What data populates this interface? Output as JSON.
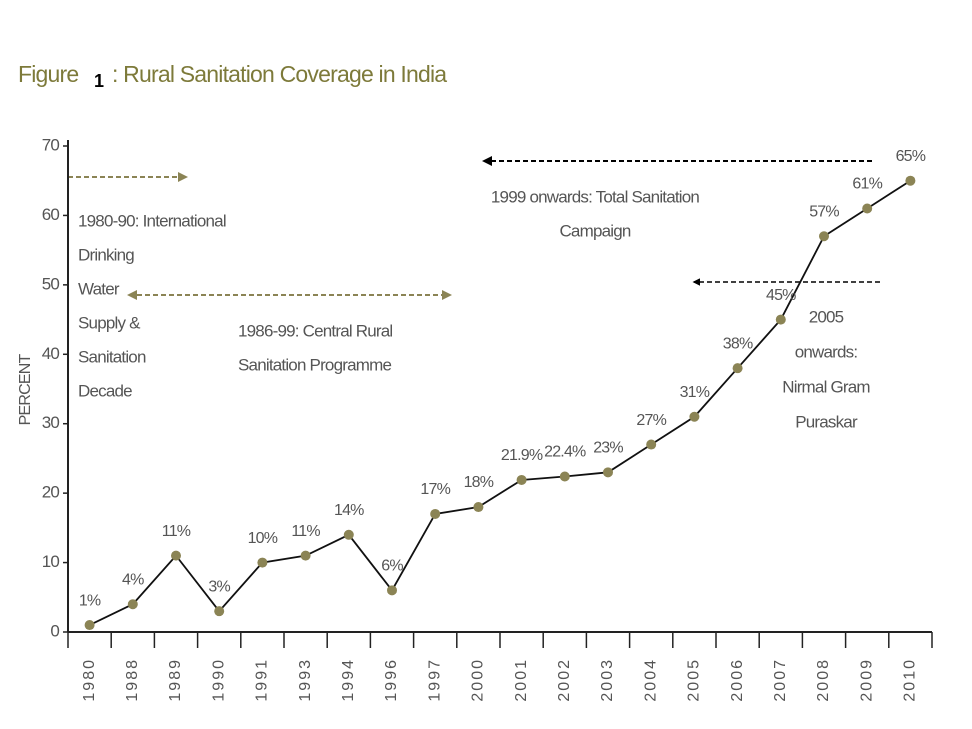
{
  "chart_data": {
    "type": "line",
    "title_prefix": "Figure",
    "figure_number": "1",
    "title": ": Rural Sanitation Coverage in India",
    "y_label": "PERCENT",
    "categories": [
      "1980",
      "1988",
      "1989",
      "1990",
      "1991",
      "1993",
      "1994",
      "1996",
      "1997",
      "2000",
      "2001",
      "2002",
      "2003",
      "2004",
      "2005",
      "2006",
      "2007",
      "2008",
      "2009",
      "2010"
    ],
    "series": [
      {
        "name": "Rural sanitation coverage",
        "color": "#111111",
        "marker_color": "#8b8455",
        "values": [
          1,
          4,
          11,
          3,
          10,
          11,
          14,
          6,
          17,
          18,
          21.9,
          22.4,
          23,
          27,
          31,
          38,
          45,
          57,
          61,
          65
        ],
        "value_labels": [
          "1%",
          "4%",
          "11%",
          "3%",
          "10%",
          "11%",
          "14%",
          "6%",
          "17%",
          "18%",
          "21.9%",
          "22.4%",
          "23%",
          "27%",
          "31%",
          "38%",
          "45%",
          "57%",
          "61%",
          "65%"
        ]
      }
    ],
    "ylim": [
      0,
      70
    ],
    "yticks": [
      0,
      10,
      20,
      30,
      40,
      50,
      60,
      70
    ],
    "grid": false,
    "annotations": [
      {
        "lines": [
          "1980-90: International",
          "Drinking",
          "Water",
          "Supply &",
          "Sanitation",
          "Decade"
        ]
      },
      {
        "lines": [
          "1986-99: Central Rural",
          "Sanitation Programme"
        ]
      },
      {
        "lines": [
          "1999 onwards: Total Sanitation",
          "Campaign"
        ]
      },
      {
        "lines": [
          "2005",
          "onwards:",
          "Nirmal Gram",
          "Puraskar"
        ]
      }
    ]
  }
}
